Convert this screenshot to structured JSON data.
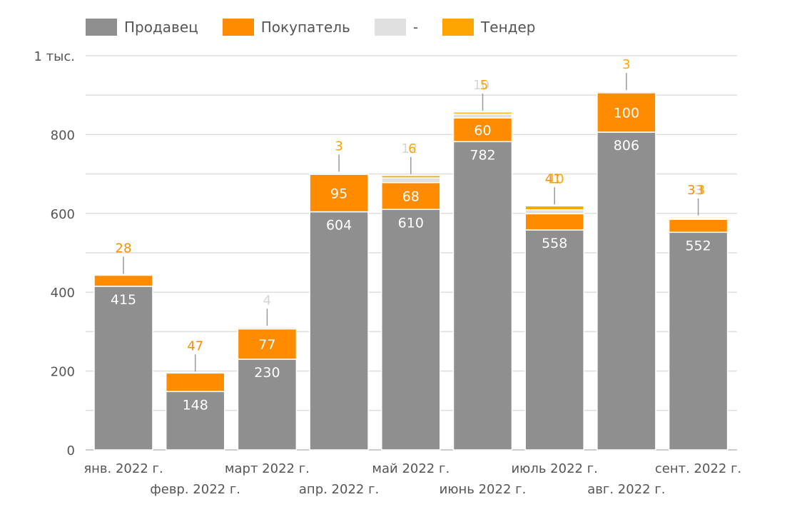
{
  "chart_data": {
    "type": "bar",
    "stacked": true,
    "y_unit_label": "1 тыс.",
    "ylim": [
      0,
      1000
    ],
    "y_ticks": [
      0,
      200,
      400,
      600,
      800
    ],
    "grid": true,
    "legend_position": "top-left",
    "categories": [
      "янв. 2022 г.",
      "февр. 2022 г.",
      "март 2022 г.",
      "апр. 2022 г.",
      "май 2022 г.",
      "июнь 2022 г.",
      "июль 2022 г.",
      "авг. 2022 г.",
      "сент. 2022 г."
    ],
    "series": [
      {
        "name": "Продавец",
        "color": "#8f8f8f",
        "values": [
          415,
          148,
          230,
          604,
          610,
          782,
          558,
          806,
          552
        ]
      },
      {
        "name": "Покупатель",
        "color": "#ff8c00",
        "values": [
          28,
          47,
          77,
          95,
          68,
          60,
          41,
          100,
          33
        ]
      },
      {
        "name": "-",
        "color": "#e0e0e0",
        "values": [
          0,
          0,
          4,
          0,
          12,
          10,
          10,
          0,
          3
        ]
      },
      {
        "name": "Тендер",
        "color": "#ffa500",
        "values": [
          0,
          0,
          0,
          3,
          6,
          5,
          10,
          3,
          3
        ]
      }
    ],
    "data_labels": [
      [
        "415",
        "148",
        "230",
        "604",
        "610",
        "782",
        "558",
        "806",
        "552"
      ],
      [
        "28",
        "47",
        "77",
        "95",
        "68",
        "60",
        "41",
        "100",
        "33"
      ],
      [
        "",
        "",
        "4",
        "",
        "12",
        "10",
        "",
        "",
        "3"
      ],
      [
        "",
        "",
        "",
        "3",
        "6",
        "5",
        "10",
        "3",
        "3"
      ]
    ]
  }
}
